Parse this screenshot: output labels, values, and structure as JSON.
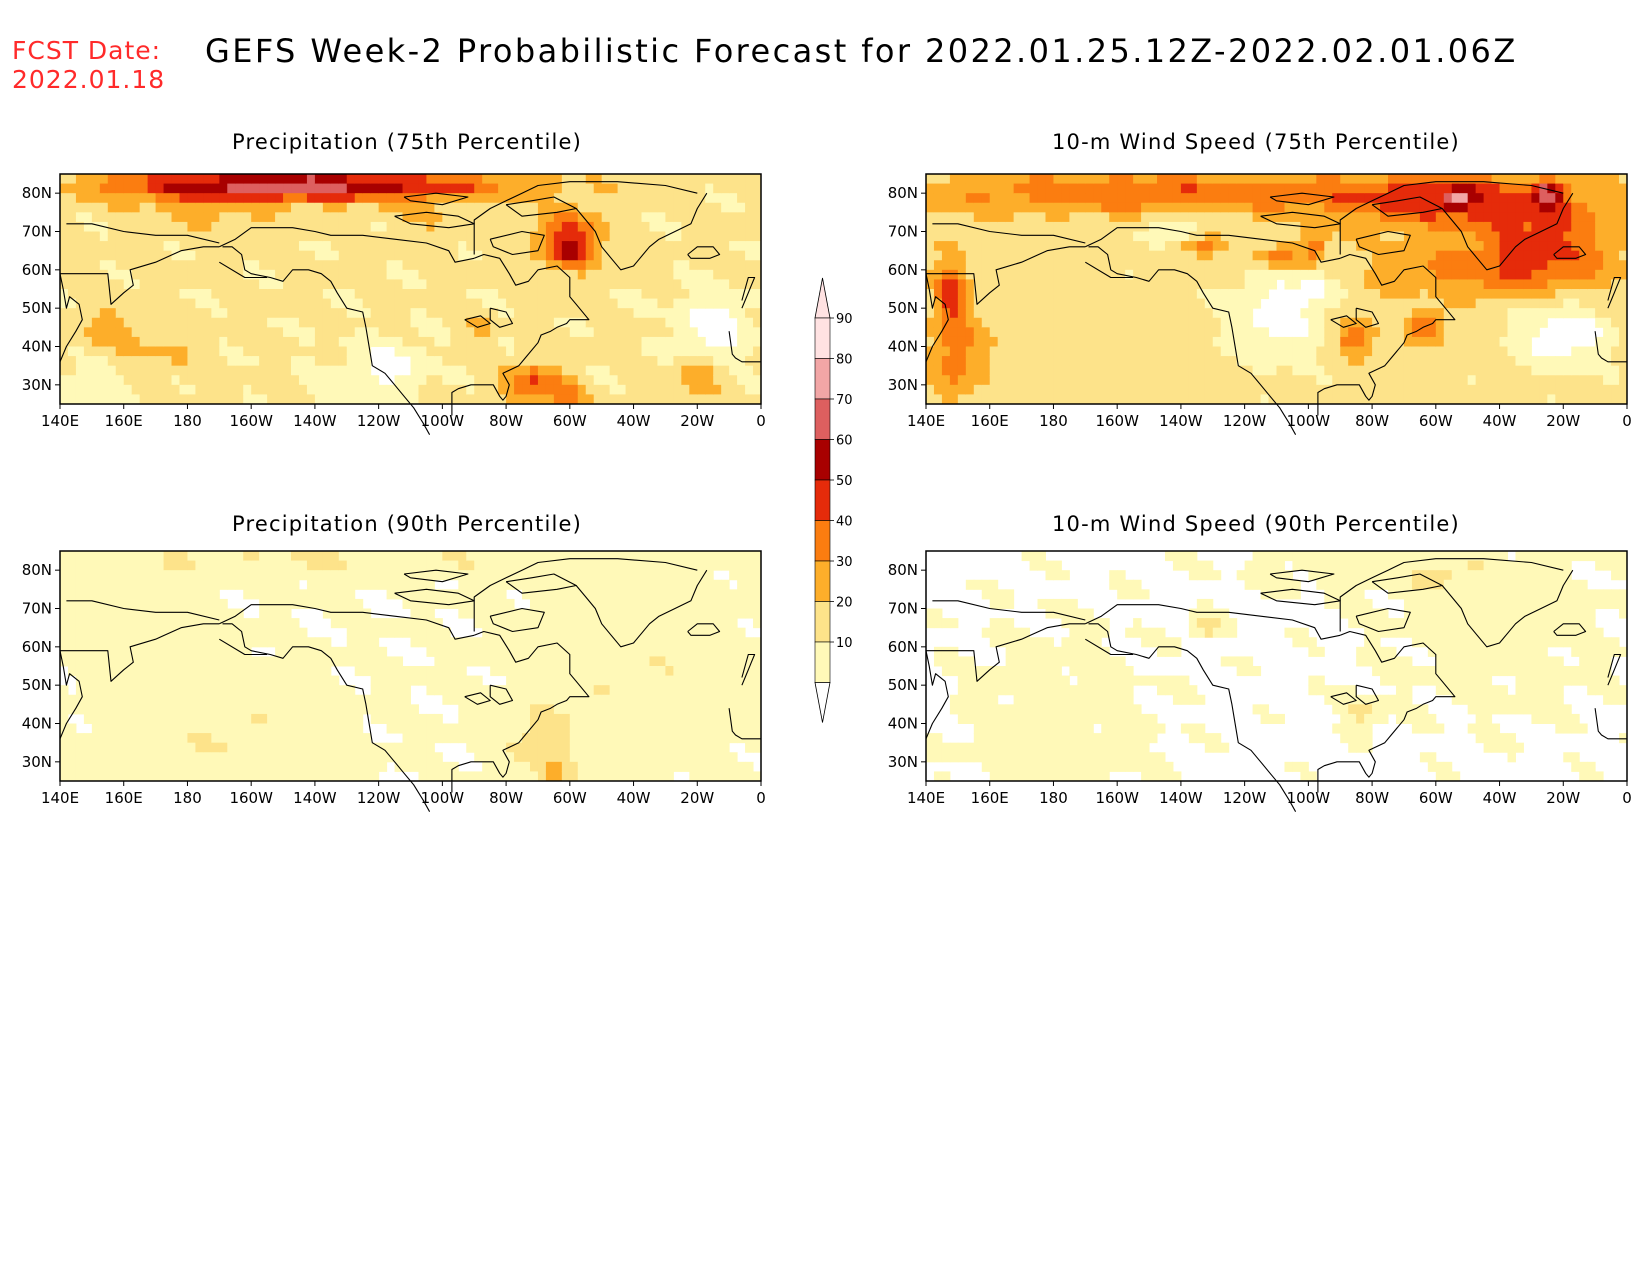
{
  "header": {
    "fcst_label": "FCST Date:",
    "fcst_date": "2022.01.18",
    "title": "GEFS Week-2 Probabilistic Forecast for 2022.01.25.12Z-2022.02.01.06Z"
  },
  "panels": [
    {
      "title": "Precipitation (75th Percentile)",
      "palette": "pr75"
    },
    {
      "title": "10-m Wind Speed (75th Percentile)",
      "palette": "ws75"
    },
    {
      "title": "Precipitation (90th Percentile)",
      "palette": "pr90"
    },
    {
      "title": "10-m Wind Speed (90th Percentile)",
      "palette": "ws90"
    }
  ],
  "axes": {
    "lon_labels": [
      "140E",
      "160E",
      "180",
      "160W",
      "140W",
      "120W",
      "100W",
      "80W",
      "60W",
      "40W",
      "20W",
      "0"
    ],
    "lat_labels": [
      "80N",
      "70N",
      "60N",
      "50N",
      "40N",
      "30N"
    ]
  },
  "colorbar": {
    "labels": [
      "90",
      "80",
      "70",
      "60",
      "50",
      "40",
      "30",
      "20",
      "10"
    ],
    "colors": {
      "10-20": "#fff9b8",
      "20-30": "#fde38a",
      "30-40": "#fdae2a",
      "40-50": "#fb7d10",
      "50-60": "#e52b0a",
      "60-70": "#a80000",
      "70-80": "#dd5f5f",
      "80-90": "#f2a6a6",
      "90+": "#ffe2e2"
    }
  }
}
